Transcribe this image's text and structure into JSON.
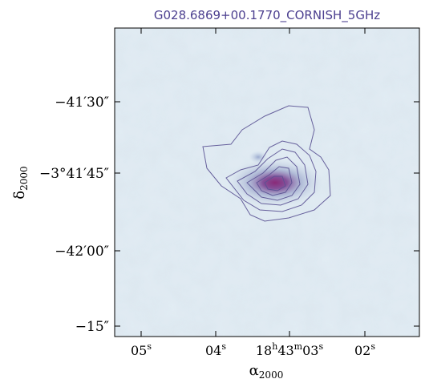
{
  "figure": {
    "title": "G028.6869+00.1770_CORNISH_5GHz",
    "xlabel": {
      "main": "α",
      "sub": "2000"
    },
    "ylabel": {
      "main": "δ",
      "sub": "2000"
    },
    "y_ticks": [
      {
        "label": "−41′30″"
      },
      {
        "label": "−3°41′45″"
      },
      {
        "label": "−42′00″"
      },
      {
        "label": "−15″"
      }
    ],
    "x_ticks": [
      {
        "base": "05",
        "sup": "s"
      },
      {
        "base": "04",
        "sup": "s"
      },
      {
        "base": "18",
        "sup": "h",
        "base2": "43",
        "sup2": "m",
        "base3": "03",
        "sup3": "s"
      },
      {
        "base": "02",
        "sup": "s"
      }
    ]
  },
  "colors": {
    "title": "#4b3f8f",
    "background_map": "#d9e6ef",
    "contour": "#5a5293",
    "peak": "#8a2a78"
  }
}
